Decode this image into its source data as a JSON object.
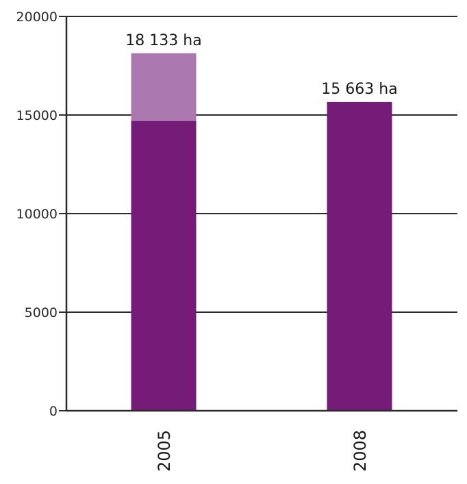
{
  "chart_data": {
    "type": "bar",
    "stacked": true,
    "categories": [
      "2005",
      "2008"
    ],
    "series": [
      {
        "values": [
          14700,
          15663
        ],
        "color": "#751c79"
      },
      {
        "values": [
          3433,
          0
        ],
        "color": "#ab79b0"
      }
    ],
    "data_labels": [
      "18 133 ha",
      "15 663 ha"
    ],
    "y_ticks": [
      "0",
      "5000",
      "10000",
      "15000",
      "20000"
    ],
    "ylim": [
      0,
      20000
    ],
    "grid": true
  }
}
